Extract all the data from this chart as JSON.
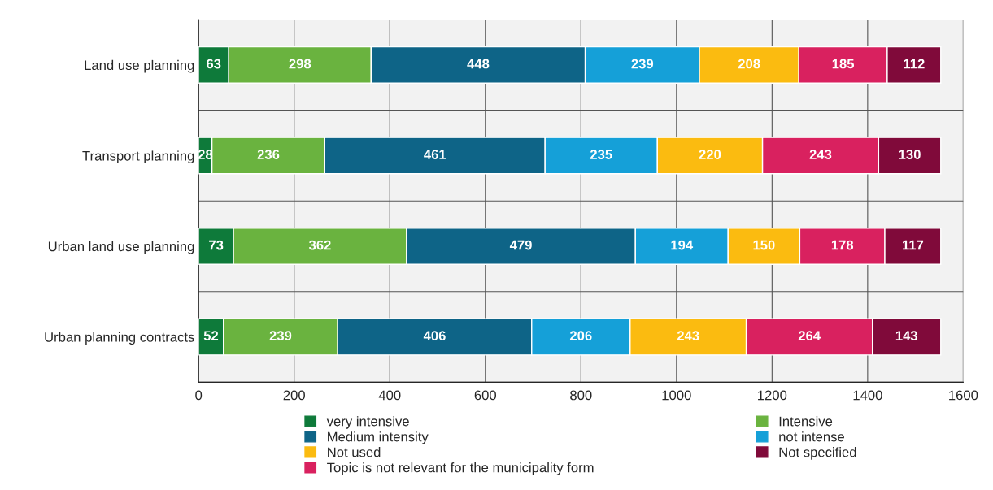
{
  "chart_data": {
    "type": "bar",
    "orientation": "horizontal",
    "stacked": true,
    "data_labels": true,
    "grid": "x",
    "legend": "bottom",
    "categories": [
      "Land use planning",
      "Transport planning",
      "Urban land use planning",
      "Urban planning contracts"
    ],
    "series": [
      {
        "name": "very intensive",
        "color": "#0e7a3a",
        "values": [
          63,
          28,
          73,
          52
        ]
      },
      {
        "name": "Intensive",
        "color": "#6ab33f",
        "values": [
          298,
          236,
          362,
          239
        ]
      },
      {
        "name": "Medium intensity",
        "color": "#0e6487",
        "values": [
          448,
          461,
          479,
          406
        ]
      },
      {
        "name": "not intense",
        "color": "#15a0d8",
        "values": [
          239,
          235,
          194,
          206
        ]
      },
      {
        "name": "Not used",
        "color": "#fbbb10",
        "values": [
          208,
          220,
          150,
          243
        ]
      },
      {
        "name": "Topic is not relevant for the municipality form",
        "color": "#d9215f",
        "values": [
          185,
          243,
          178,
          264
        ]
      },
      {
        "name": "Not specified",
        "color": "#800a3a",
        "values": [
          112,
          130,
          117,
          143
        ]
      }
    ],
    "xlim": [
      0,
      1600
    ],
    "xticks": [
      0,
      200,
      400,
      600,
      800,
      1000,
      1200,
      1400,
      1600
    ]
  }
}
